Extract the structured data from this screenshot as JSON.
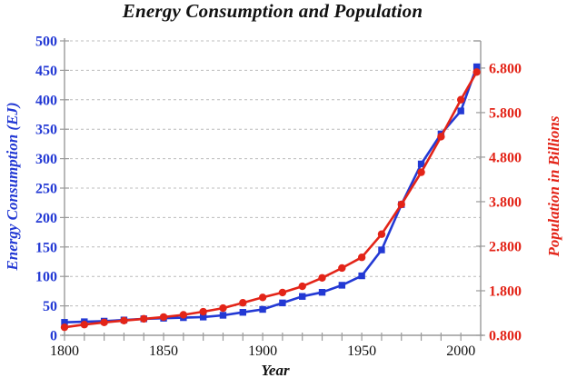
{
  "chart_data": {
    "type": "line",
    "title": "Energy Consumption and Population",
    "xlabel": "Year",
    "ylabel_left": "Energy Consumption (EJ)",
    "ylabel_right": "Population in Billions",
    "x": [
      1800,
      1810,
      1820,
      1830,
      1840,
      1850,
      1860,
      1870,
      1880,
      1890,
      1900,
      1910,
      1920,
      1930,
      1940,
      1950,
      1960,
      1970,
      1980,
      1990,
      2000,
      2008
    ],
    "series": [
      {
        "name": "Energy Consumption (EJ)",
        "axis": "left",
        "marker": "square",
        "color": "#2339d4",
        "values": [
          22,
          23,
          24,
          26,
          28,
          29,
          30,
          31,
          34,
          39,
          44,
          55,
          66,
          73,
          85,
          101,
          145,
          222,
          291,
          342,
          381,
          456
        ]
      },
      {
        "name": "Population in Billions",
        "axis": "right",
        "marker": "circle",
        "color": "#e32418",
        "values": [
          0.98,
          1.04,
          1.09,
          1.13,
          1.17,
          1.21,
          1.26,
          1.33,
          1.41,
          1.53,
          1.65,
          1.76,
          1.9,
          2.09,
          2.31,
          2.55,
          3.07,
          3.74,
          4.46,
          5.26,
          6.09,
          6.71
        ]
      }
    ],
    "xlim": [
      1800,
      2010
    ],
    "x_major_ticks": [
      1800,
      1850,
      1900,
      1950,
      2000
    ],
    "x_minor_step": 10,
    "left_axis": {
      "min": 0,
      "max": 500,
      "tick_values": [
        0,
        50,
        100,
        150,
        200,
        250,
        300,
        350,
        400,
        450,
        500
      ],
      "tick_labels": [
        "0",
        "50",
        "100",
        "150",
        "200",
        "250",
        "300",
        "350",
        "400",
        "450",
        "500"
      ],
      "color": "#2339d4"
    },
    "right_axis": {
      "bottom_value": 0.8,
      "top_value": 7.41,
      "tick_values": [
        0.8,
        1.8,
        2.8,
        3.8,
        4.8,
        5.8,
        6.8
      ],
      "tick_labels": [
        "0.800",
        "1.800",
        "2.800",
        "3.800",
        "4.800",
        "5.800",
        "6.800"
      ],
      "color": "#e32418"
    },
    "grid": "horizontal-dashed",
    "legend": "none"
  },
  "colors": {
    "axis_line": "#9a9a9a",
    "gridline": "#bcbcbc",
    "text": "#111111",
    "energy_blue": "#2339d4",
    "population_red": "#e32418"
  }
}
